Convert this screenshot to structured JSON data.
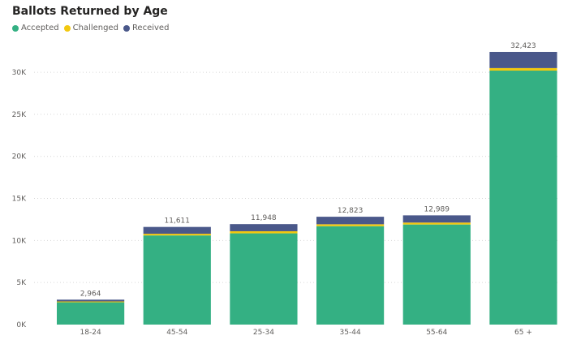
{
  "chart_data": {
    "type": "bar",
    "stacked": true,
    "title": "Ballots Returned by Age",
    "categories": [
      "18-24",
      "45-54",
      "25-34",
      "35-44",
      "55-64",
      "65 +"
    ],
    "series": [
      {
        "name": "Accepted",
        "color": "#34B083",
        "values": [
          2650,
          10600,
          10850,
          11700,
          11900,
          30200
        ]
      },
      {
        "name": "Challenged",
        "color": "#F2C80F",
        "values": [
          100,
          200,
          250,
          230,
          230,
          300
        ]
      },
      {
        "name": "Received",
        "color": "#4A588A",
        "values": [
          214,
          811,
          848,
          893,
          859,
          1923
        ]
      }
    ],
    "totals": [
      2964,
      11611,
      11948,
      12823,
      12989,
      32423
    ],
    "total_labels": [
      "2,964",
      "11,611",
      "11,948",
      "12,823",
      "12,989",
      "32,423"
    ],
    "ylim": [
      0,
      33000
    ],
    "yticks": [
      0,
      5000,
      10000,
      15000,
      20000,
      25000,
      30000
    ],
    "ytick_labels": [
      "0K",
      "5K",
      "10K",
      "15K",
      "20K",
      "25K",
      "30K"
    ],
    "xlabel": "",
    "ylabel": "",
    "legend_position": "top-left",
    "grid": true
  }
}
